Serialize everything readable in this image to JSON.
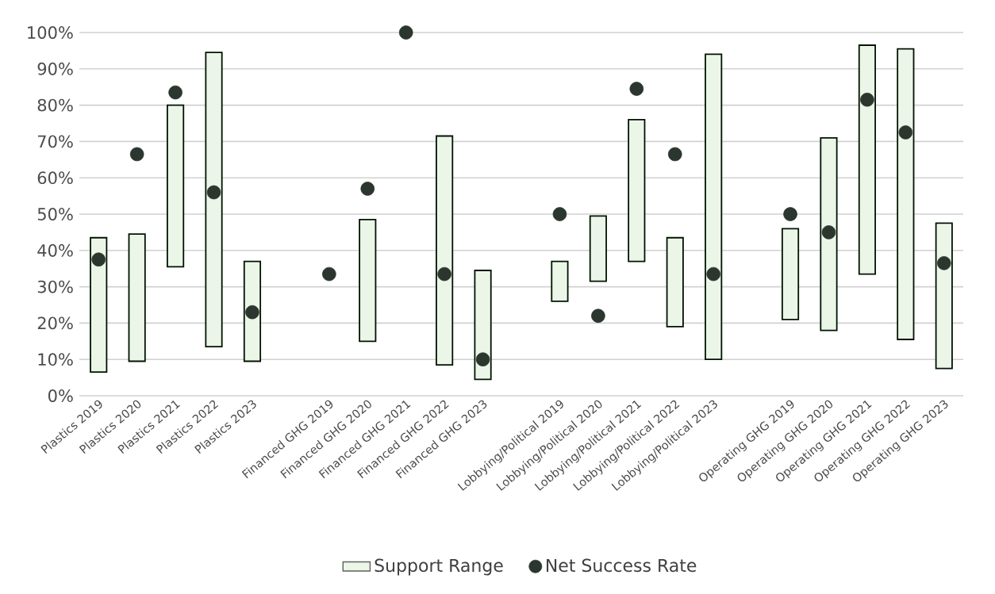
{
  "chart_data": {
    "type": "bar",
    "categories": [
      "Plastics 2019",
      "Plastics 2020",
      "Plastics 2021",
      "Plastics 2022",
      "Plastics 2023",
      null,
      "Financed GHG 2019",
      "Financed GHG 2020",
      "Financed GHG 2021",
      "Financed GHG 2022",
      "Financed GHG 2023",
      null,
      "Lobbying/Political 2019",
      "Lobbying/Political 2020",
      "Lobbying/Political 2021",
      "Lobbying/Political 2022",
      "Lobbying/Political 2023",
      null,
      "Operating GHG 2019",
      "Operating GHG 2020",
      "Operating GHG 2021",
      "Operating GHG 2022",
      "Operating GHG 2023"
    ],
    "series": [
      {
        "name": "Support Range",
        "color": "#ecf6e8",
        "base": [
          6.5,
          9.5,
          35.5,
          13.5,
          9.5,
          null,
          null,
          15,
          null,
          8.5,
          4.5,
          null,
          26,
          31.5,
          37,
          19,
          10,
          null,
          21,
          18,
          33.5,
          15.5,
          7.5
        ],
        "values": [
          37,
          35,
          44.5,
          81,
          27.5,
          null,
          null,
          33.5,
          null,
          63,
          30,
          null,
          11,
          18,
          39,
          24.5,
          84,
          null,
          25,
          53,
          63,
          80,
          40
        ]
      },
      {
        "name": "Net Success Rate",
        "type": "scatter",
        "color": "#2b362e",
        "values": [
          37.5,
          66.5,
          83.5,
          56,
          23,
          null,
          33.5,
          57,
          100,
          33.5,
          10,
          null,
          50,
          22,
          84.5,
          66.5,
          33.5,
          null,
          50,
          45,
          81.5,
          72.5,
          36.5
        ]
      }
    ],
    "ylim": [
      0,
      100
    ],
    "yticks": [
      {
        "value": 0,
        "label": "0%"
      },
      {
        "value": 10,
        "label": "10%"
      },
      {
        "value": 20,
        "label": "20%"
      },
      {
        "value": 30,
        "label": "30%"
      },
      {
        "value": 40,
        "label": "40%"
      },
      {
        "value": 50,
        "label": "50%"
      },
      {
        "value": 60,
        "label": "60%"
      },
      {
        "value": 70,
        "label": "70%"
      },
      {
        "value": 80,
        "label": "80%"
      },
      {
        "value": 90,
        "label": "90%"
      },
      {
        "value": 100,
        "label": "100%"
      }
    ],
    "grid": "y",
    "marker": "circle",
    "legend": "bottom"
  }
}
